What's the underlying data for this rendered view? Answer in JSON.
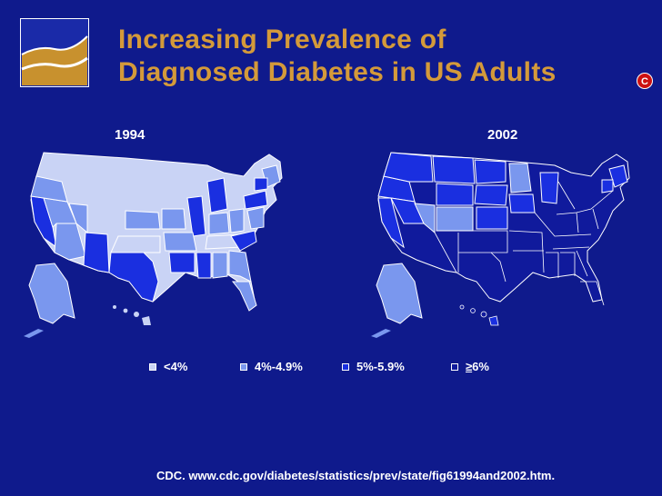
{
  "slide": {
    "title_line1": "Increasing Prevalence of",
    "title_line2": "Diagnosed Diabetes in US Adults",
    "badge_letter": "C",
    "maps": [
      {
        "year": "1994"
      },
      {
        "year": "2002"
      }
    ],
    "legend": [
      {
        "label": "<4%",
        "color": "#c9d3f5"
      },
      {
        "label": "4%-4.9%",
        "color": "#7a97ee"
      },
      {
        "label": "5%-5.9%",
        "color": "#1a2fe0"
      },
      {
        "label_symbol": "≥",
        "label_rest": "6%",
        "color": "#101a9c"
      }
    ],
    "source": "CDC. www.cdc.gov/diabetes/statistics/prev/state/fig61994and2002.htm.",
    "colors": {
      "background": "#0f1a8c",
      "title": "#d49a3a",
      "badge": "#cc1111"
    }
  }
}
